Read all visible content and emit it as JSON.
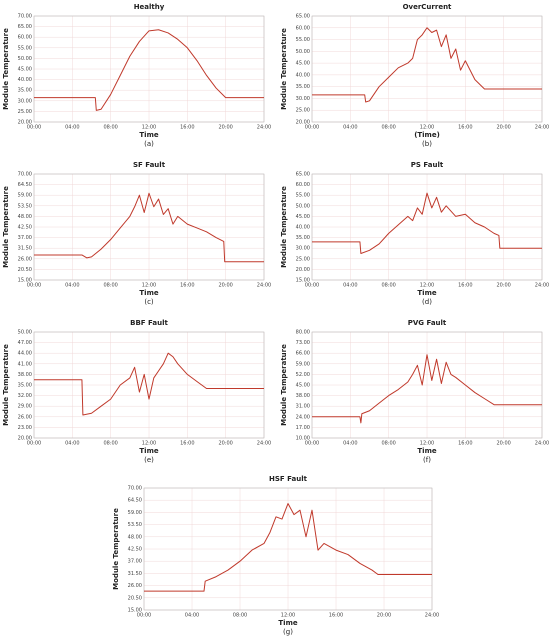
{
  "chart_data": [
    {
      "type": "line",
      "title": "Healthy",
      "xlabel": "Time",
      "ylabel": "Module Temperature",
      "caption": "(a)",
      "grid": true,
      "x": [
        0,
        6.4,
        6.5,
        7,
        8,
        9,
        10,
        11,
        12,
        13,
        14,
        15,
        16,
        17,
        18,
        19,
        20,
        24
      ],
      "series": [
        {
          "color": "#c0392b",
          "values": [
            31.5,
            31.5,
            25.5,
            26,
            33,
            42,
            51,
            58,
            63,
            63.5,
            62,
            59,
            55,
            49,
            42,
            36,
            31.5,
            31.5
          ]
        }
      ],
      "xlim": [
        0,
        24
      ],
      "ylim": [
        20,
        70
      ],
      "xticks": [
        {
          "value": 0,
          "label": "00:00"
        },
        {
          "value": 4,
          "label": "04:00"
        },
        {
          "value": 8,
          "label": "08:00"
        },
        {
          "value": 12,
          "label": "12:00"
        },
        {
          "value": 16,
          "label": "16:00"
        },
        {
          "value": 20,
          "label": "20:00"
        },
        {
          "value": 24,
          "label": "24:00"
        }
      ],
      "yticks": [
        {
          "value": 20,
          "label": "20.00"
        },
        {
          "value": 25,
          "label": "25.00"
        },
        {
          "value": 30,
          "label": "30.00"
        },
        {
          "value": 35,
          "label": "35.00"
        },
        {
          "value": 40,
          "label": "40.00"
        },
        {
          "value": 45,
          "label": "45.00"
        },
        {
          "value": 50,
          "label": "50.00"
        },
        {
          "value": 55,
          "label": "55.00"
        },
        {
          "value": 60,
          "label": "60.00"
        },
        {
          "value": 65,
          "label": "65.00"
        },
        {
          "value": 70,
          "label": "70.00"
        }
      ]
    },
    {
      "type": "line",
      "title": "OverCurrent",
      "xlabel": "(Time)",
      "ylabel": "Module Temperature",
      "caption": "(b)",
      "grid": true,
      "x": [
        0,
        5.5,
        5.6,
        6,
        7,
        8,
        9,
        10,
        10.5,
        11,
        11.5,
        12,
        12.5,
        13,
        13.5,
        14,
        14.5,
        15,
        15.5,
        16,
        17,
        18,
        24
      ],
      "series": [
        {
          "color": "#c0392b",
          "values": [
            31.5,
            31.5,
            28.5,
            29,
            35,
            39,
            43,
            45,
            47,
            55,
            57,
            60,
            58,
            59,
            52,
            57,
            47,
            51,
            42,
            46,
            38,
            34,
            34
          ]
        }
      ],
      "xlim": [
        0,
        24
      ],
      "ylim": [
        20,
        65
      ],
      "xticks": [
        {
          "value": 0,
          "label": "00:00"
        },
        {
          "value": 4,
          "label": "04:00"
        },
        {
          "value": 8,
          "label": "08:00"
        },
        {
          "value": 12,
          "label": "12:00"
        },
        {
          "value": 16,
          "label": "16:00"
        },
        {
          "value": 20,
          "label": "20:00"
        },
        {
          "value": 24,
          "label": "24:00"
        }
      ],
      "yticks": [
        {
          "value": 20,
          "label": "20.00"
        },
        {
          "value": 25,
          "label": "25.00"
        },
        {
          "value": 30,
          "label": "30.00"
        },
        {
          "value": 35,
          "label": "35.00"
        },
        {
          "value": 40,
          "label": "40.00"
        },
        {
          "value": 45,
          "label": "45.00"
        },
        {
          "value": 50,
          "label": "50.00"
        },
        {
          "value": 55,
          "label": "55.00"
        },
        {
          "value": 60,
          "label": "60.00"
        },
        {
          "value": 65,
          "label": "65.00"
        }
      ]
    },
    {
      "type": "line",
      "title": "SF Fault",
      "xlabel": "Time",
      "ylabel": "Module Temperature",
      "caption": "(c)",
      "grid": true,
      "x": [
        0,
        5,
        5.5,
        6,
        7,
        8,
        9,
        10,
        10.5,
        11,
        11.5,
        12,
        12.5,
        13,
        13.5,
        14,
        14.5,
        15,
        16,
        17,
        18,
        19,
        19.8,
        19.9,
        24
      ],
      "series": [
        {
          "color": "#c0392b",
          "values": [
            28,
            28,
            26.5,
            27,
            31,
            36,
            42,
            48,
            53,
            59,
            50,
            60,
            53,
            57,
            49,
            52,
            44,
            48,
            44,
            42,
            40,
            37,
            35,
            24.5,
            24.5
          ]
        }
      ],
      "xlim": [
        0,
        24
      ],
      "ylim": [
        15,
        70
      ],
      "xticks": [
        {
          "value": 0,
          "label": "00:00"
        },
        {
          "value": 4,
          "label": "04:00"
        },
        {
          "value": 8,
          "label": "08:00"
        },
        {
          "value": 12,
          "label": "12:00"
        },
        {
          "value": 16,
          "label": "16:00"
        },
        {
          "value": 20,
          "label": "20:00"
        },
        {
          "value": 24,
          "label": "24:00"
        }
      ],
      "yticks": [
        {
          "value": 15,
          "label": "15.00"
        },
        {
          "value": 20.5,
          "label": "20.50"
        },
        {
          "value": 26,
          "label": "26.00"
        },
        {
          "value": 31.5,
          "label": "31.50"
        },
        {
          "value": 37,
          "label": "37.00"
        },
        {
          "value": 42.5,
          "label": "42.50"
        },
        {
          "value": 48,
          "label": "48.00"
        },
        {
          "value": 53.5,
          "label": "53.50"
        },
        {
          "value": 59,
          "label": "59.00"
        },
        {
          "value": 64.5,
          "label": "64.50"
        },
        {
          "value": 70,
          "label": "70.00"
        }
      ]
    },
    {
      "type": "line",
      "title": "PS Fault",
      "xlabel": "Time",
      "ylabel": "Module Temperature",
      "caption": "(d)",
      "grid": true,
      "x": [
        0,
        5,
        5.1,
        6,
        7,
        8,
        9,
        10,
        10.5,
        11,
        11.5,
        12,
        12.5,
        13,
        13.5,
        14,
        15,
        16,
        17,
        18,
        19,
        19.5,
        19.6,
        24
      ],
      "series": [
        {
          "color": "#c0392b",
          "values": [
            33,
            33,
            27.5,
            29,
            32,
            37,
            41,
            45,
            43,
            49,
            46,
            56,
            49,
            54,
            47,
            50,
            45,
            46,
            42,
            40,
            37,
            36,
            30,
            30
          ]
        }
      ],
      "xlim": [
        0,
        24
      ],
      "ylim": [
        15,
        65
      ],
      "xticks": [
        {
          "value": 0,
          "label": "00:00"
        },
        {
          "value": 4,
          "label": "04:00"
        },
        {
          "value": 8,
          "label": "08:00"
        },
        {
          "value": 12,
          "label": "12:00"
        },
        {
          "value": 16,
          "label": "16:00"
        },
        {
          "value": 20,
          "label": "20:00"
        },
        {
          "value": 24,
          "label": "24:00"
        }
      ],
      "yticks": [
        {
          "value": 15,
          "label": "15.00"
        },
        {
          "value": 20,
          "label": "20.00"
        },
        {
          "value": 25,
          "label": "25.00"
        },
        {
          "value": 30,
          "label": "30.00"
        },
        {
          "value": 35,
          "label": "35.00"
        },
        {
          "value": 40,
          "label": "40.00"
        },
        {
          "value": 45,
          "label": "45.00"
        },
        {
          "value": 50,
          "label": "50.00"
        },
        {
          "value": 55,
          "label": "55.00"
        },
        {
          "value": 60,
          "label": "60.00"
        },
        {
          "value": 65,
          "label": "65.00"
        }
      ]
    },
    {
      "type": "line",
      "title": "BBF Fault",
      "xlabel": "Time",
      "ylabel": "Module Temperature",
      "caption": "(e)",
      "grid": true,
      "x": [
        0,
        5,
        5.1,
        6,
        7,
        8,
        9,
        10,
        10.5,
        11,
        11.5,
        12,
        12.5,
        13,
        13.5,
        14,
        14.5,
        15,
        16,
        17,
        18,
        24
      ],
      "series": [
        {
          "color": "#c0392b",
          "values": [
            36.5,
            36.5,
            26.5,
            27,
            29,
            31,
            35,
            37,
            40,
            33,
            38,
            31,
            37,
            39,
            41,
            44,
            43,
            41,
            38,
            36,
            34,
            34
          ]
        }
      ],
      "xlim": [
        0,
        24
      ],
      "ylim": [
        20,
        50
      ],
      "xticks": [
        {
          "value": 0,
          "label": "00:00"
        },
        {
          "value": 4,
          "label": "04:00"
        },
        {
          "value": 8,
          "label": "08:00"
        },
        {
          "value": 12,
          "label": "12:00"
        },
        {
          "value": 16,
          "label": "16:00"
        },
        {
          "value": 20,
          "label": "20:00"
        },
        {
          "value": 24,
          "label": "24:00"
        }
      ],
      "yticks": [
        {
          "value": 20,
          "label": "20.00"
        },
        {
          "value": 23,
          "label": "23.00"
        },
        {
          "value": 26,
          "label": "26.00"
        },
        {
          "value": 29,
          "label": "29.00"
        },
        {
          "value": 32,
          "label": "32.00"
        },
        {
          "value": 35,
          "label": "35.00"
        },
        {
          "value": 38,
          "label": "38.00"
        },
        {
          "value": 41,
          "label": "41.00"
        },
        {
          "value": 44,
          "label": "44.00"
        },
        {
          "value": 47,
          "label": "47.00"
        },
        {
          "value": 50,
          "label": "50.00"
        }
      ]
    },
    {
      "type": "line",
      "title": "PVG Fault",
      "xlabel": "Time",
      "ylabel": "Module Temperature",
      "caption": "(f)",
      "grid": true,
      "x": [
        0,
        5,
        5.1,
        5.2,
        6,
        7,
        8,
        9,
        10,
        10.5,
        11,
        11.5,
        12,
        12.5,
        13,
        13.5,
        14,
        14.5,
        15,
        16,
        17,
        18,
        19,
        24
      ],
      "series": [
        {
          "color": "#c0392b",
          "values": [
            24,
            24,
            20,
            26,
            28,
            33,
            38,
            42,
            47,
            52,
            58,
            45,
            65,
            48,
            62,
            46,
            60,
            52,
            50,
            45,
            40,
            36,
            32,
            32
          ]
        }
      ],
      "xlim": [
        0,
        24
      ],
      "ylim": [
        10,
        80
      ],
      "xticks": [
        {
          "value": 0,
          "label": "00:00"
        },
        {
          "value": 4,
          "label": "04:00"
        },
        {
          "value": 8,
          "label": "08:00"
        },
        {
          "value": 12,
          "label": "12:00"
        },
        {
          "value": 16,
          "label": "16:00"
        },
        {
          "value": 20,
          "label": "20:00"
        },
        {
          "value": 24,
          "label": "24:00"
        }
      ],
      "yticks": [
        {
          "value": 10,
          "label": "10.00"
        },
        {
          "value": 17,
          "label": "17.00"
        },
        {
          "value": 24,
          "label": "24.00"
        },
        {
          "value": 31,
          "label": "31.00"
        },
        {
          "value": 38,
          "label": "38.00"
        },
        {
          "value": 45,
          "label": "45.00"
        },
        {
          "value": 52,
          "label": "52.00"
        },
        {
          "value": 59,
          "label": "59.00"
        },
        {
          "value": 66,
          "label": "66.00"
        },
        {
          "value": 73,
          "label": "73.00"
        },
        {
          "value": 80,
          "label": "80.00"
        }
      ]
    },
    {
      "type": "line",
      "title": "HSF Fault",
      "xlabel": "Time",
      "ylabel": "Module Temperature",
      "caption": "(g)",
      "grid": true,
      "x": [
        0,
        5,
        5.1,
        6,
        7,
        8,
        9,
        10,
        10.5,
        11,
        11.5,
        12,
        12.5,
        13,
        13.5,
        14,
        14.5,
        15,
        16,
        17,
        18,
        19,
        19.5,
        24
      ],
      "series": [
        {
          "color": "#c0392b",
          "values": [
            23.5,
            23.5,
            28,
            30,
            33,
            37,
            42,
            45,
            50,
            57,
            56,
            63,
            58,
            60,
            48,
            60,
            42,
            45,
            42,
            40,
            36,
            33,
            31,
            31
          ]
        }
      ],
      "xlim": [
        0,
        24
      ],
      "ylim": [
        15,
        70
      ],
      "xticks": [
        {
          "value": 0,
          "label": "00:00"
        },
        {
          "value": 4,
          "label": "04:00"
        },
        {
          "value": 8,
          "label": "08:00"
        },
        {
          "value": 12,
          "label": "12:00"
        },
        {
          "value": 16,
          "label": "16:00"
        },
        {
          "value": 20,
          "label": "20:00"
        },
        {
          "value": 24,
          "label": "24:00"
        }
      ],
      "yticks": [
        {
          "value": 15,
          "label": "15.00"
        },
        {
          "value": 20.5,
          "label": "20.50"
        },
        {
          "value": 26,
          "label": "26.00"
        },
        {
          "value": 31.5,
          "label": "31.50"
        },
        {
          "value": 37,
          "label": "37.00"
        },
        {
          "value": 42.5,
          "label": "42.50"
        },
        {
          "value": 48,
          "label": "48.00"
        },
        {
          "value": 53.5,
          "label": "53.50"
        },
        {
          "value": 59,
          "label": "59.00"
        },
        {
          "value": 64.5,
          "label": "64.50"
        },
        {
          "value": 70,
          "label": "70.00"
        }
      ]
    }
  ]
}
